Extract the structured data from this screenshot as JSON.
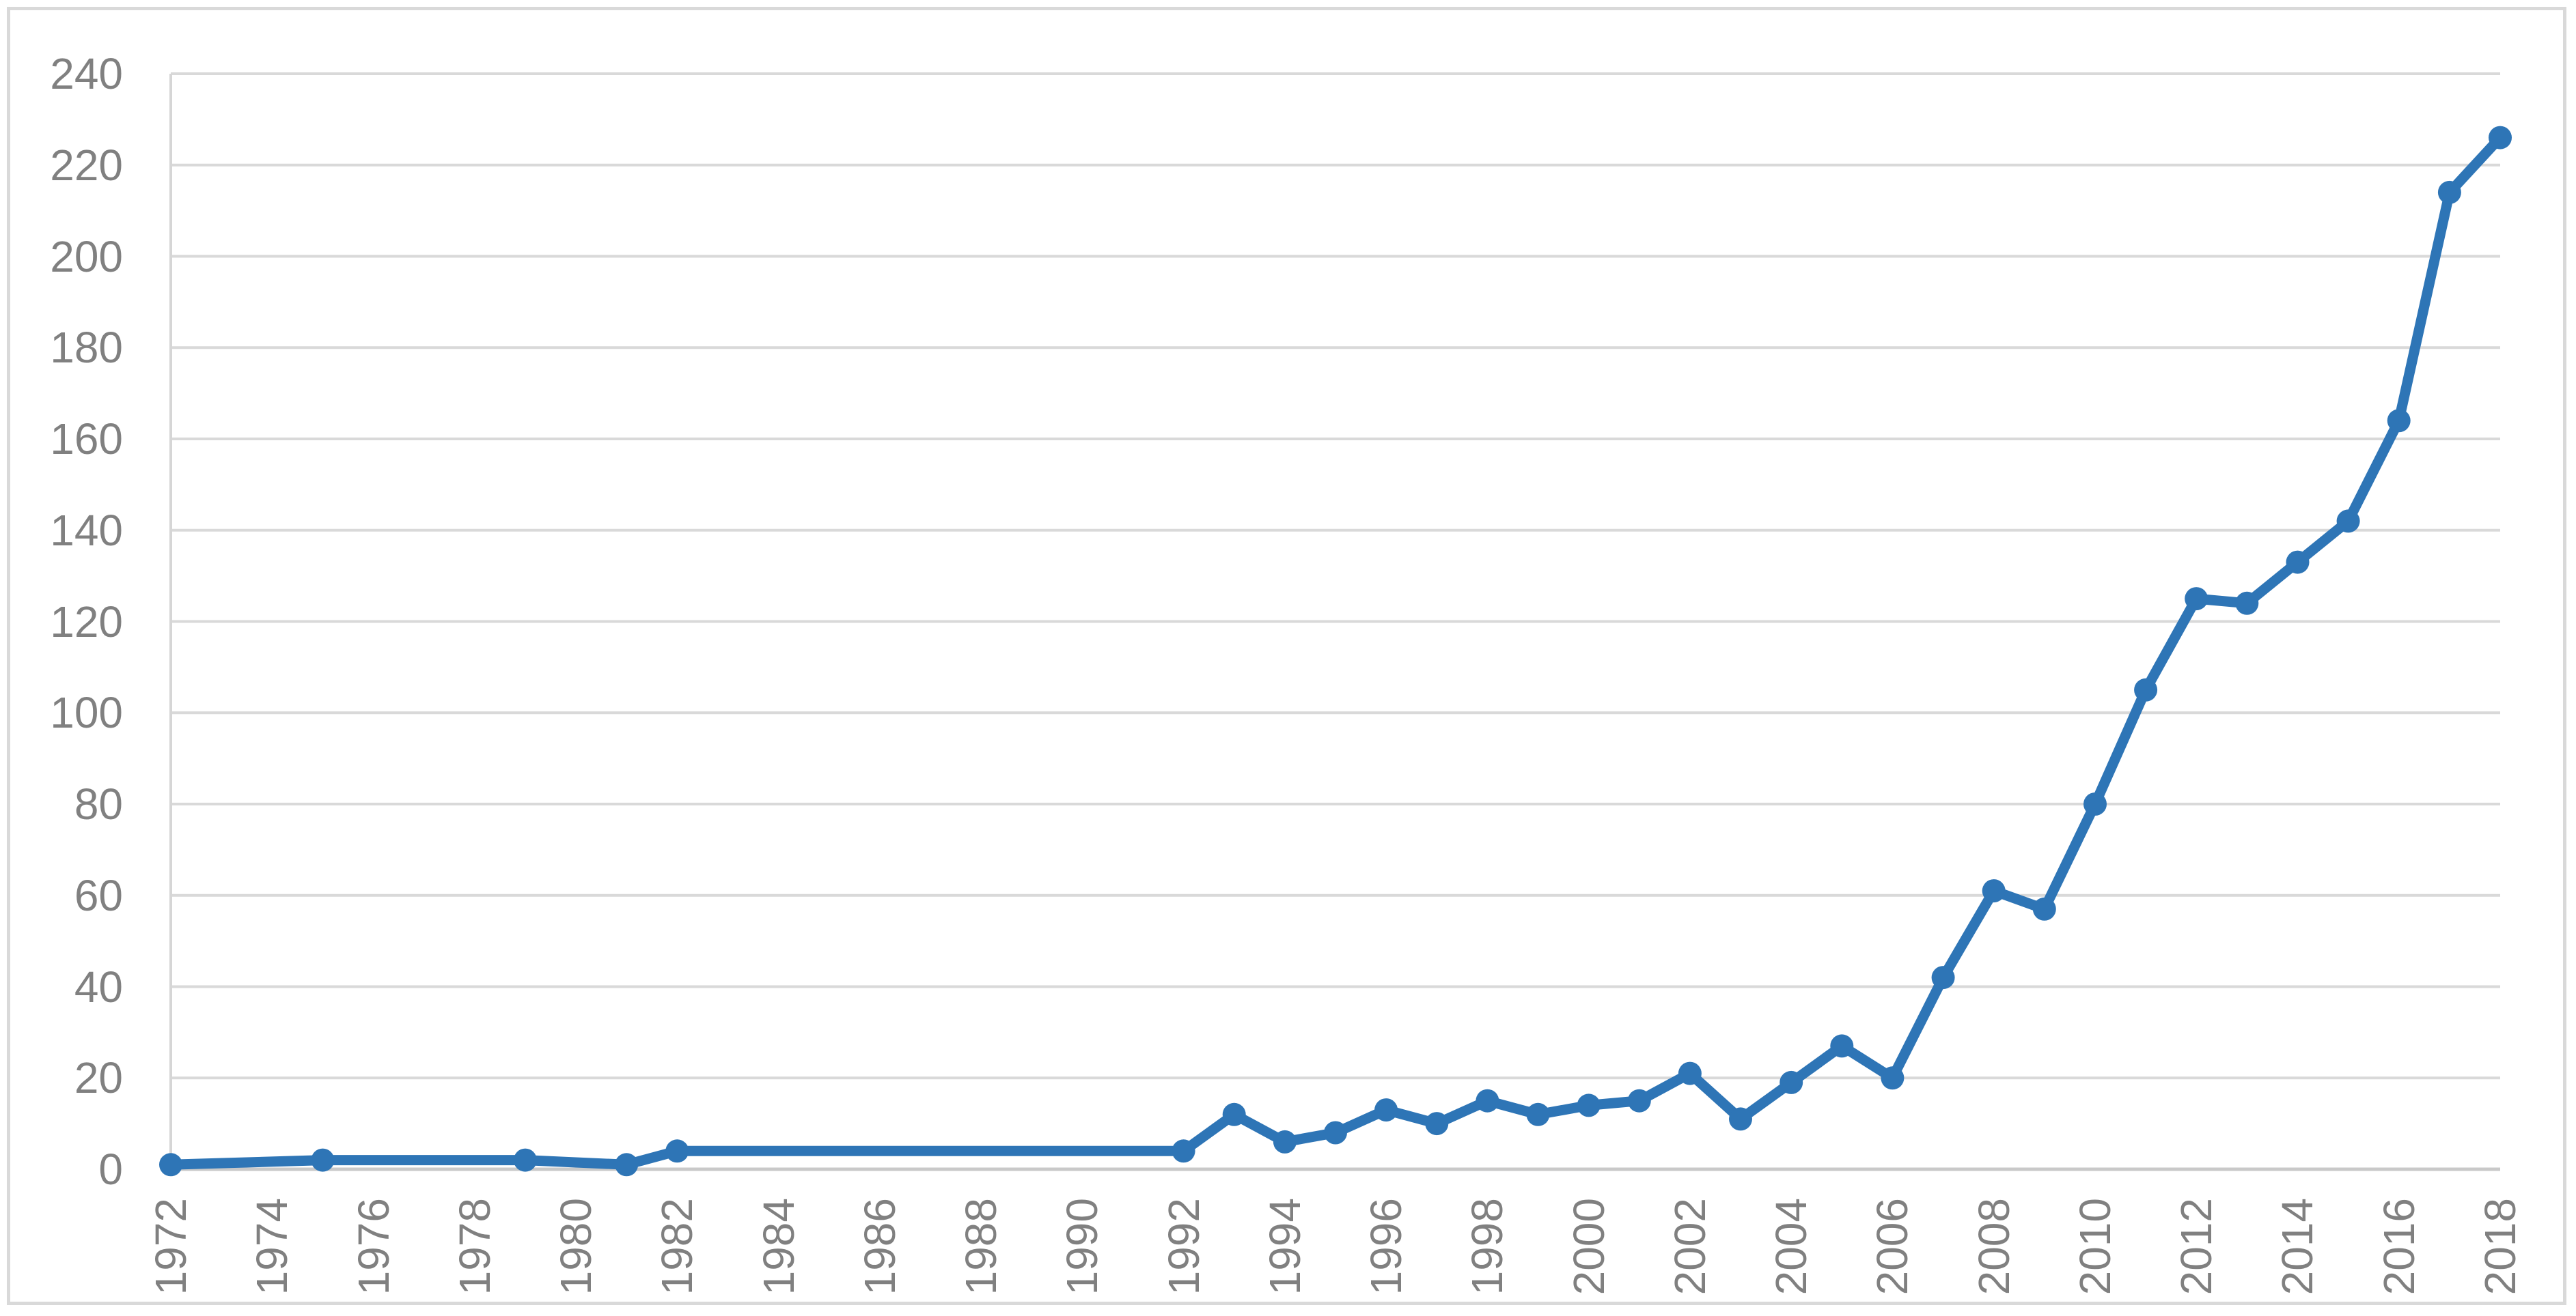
{
  "chart_data": {
    "type": "line",
    "title": "",
    "legend": "none",
    "grid": "horizontal",
    "marker_style": "circle",
    "series": [
      {
        "name": "series-1",
        "points": [
          [
            1972,
            1
          ],
          [
            1975,
            2
          ],
          [
            1979,
            2
          ],
          [
            1981,
            1
          ],
          [
            1982,
            4
          ],
          [
            1992,
            4
          ],
          [
            1993,
            12
          ],
          [
            1994,
            6
          ],
          [
            1995,
            8
          ],
          [
            1996,
            13
          ],
          [
            1997,
            10
          ],
          [
            1998,
            15
          ],
          [
            1999,
            12
          ],
          [
            2000,
            14
          ],
          [
            2001,
            15
          ],
          [
            2002,
            21
          ],
          [
            2003,
            11
          ],
          [
            2004,
            19
          ],
          [
            2005,
            27
          ],
          [
            2006,
            20
          ],
          [
            2007,
            42
          ],
          [
            2008,
            61
          ],
          [
            2009,
            57
          ],
          [
            2010,
            80
          ],
          [
            2011,
            105
          ],
          [
            2012,
            125
          ],
          [
            2013,
            124
          ],
          [
            2014,
            133
          ],
          [
            2015,
            142
          ],
          [
            2016,
            164
          ],
          [
            2017,
            214
          ],
          [
            2018,
            226
          ]
        ]
      }
    ],
    "x_axis": {
      "range": [
        1972,
        2018
      ],
      "tick_step": 2,
      "label_rotation_deg": -90,
      "ticks": [
        "1972",
        "1974",
        "1976",
        "1978",
        "1980",
        "1982",
        "1984",
        "1986",
        "1988",
        "1990",
        "1992",
        "1994",
        "1996",
        "1998",
        "2000",
        "2002",
        "2004",
        "2006",
        "2008",
        "2010",
        "2012",
        "2014",
        "2016",
        "2018"
      ]
    },
    "y_axis": {
      "range": [
        0,
        240
      ],
      "tick_step": 20,
      "ticks": [
        "0",
        "20",
        "40",
        "60",
        "80",
        "100",
        "120",
        "140",
        "160",
        "180",
        "200",
        "220",
        "240"
      ]
    },
    "colors": {
      "line": "#2E75B6",
      "marker": "#2E75B6",
      "gridline": "#D9D9D9",
      "zero_axis_line": "#C9C9C9",
      "vertical_axis_line": "#D6D6D6",
      "tick_text": "#808080",
      "border": "#D9D9D9",
      "background": "#FFFFFF"
    }
  }
}
